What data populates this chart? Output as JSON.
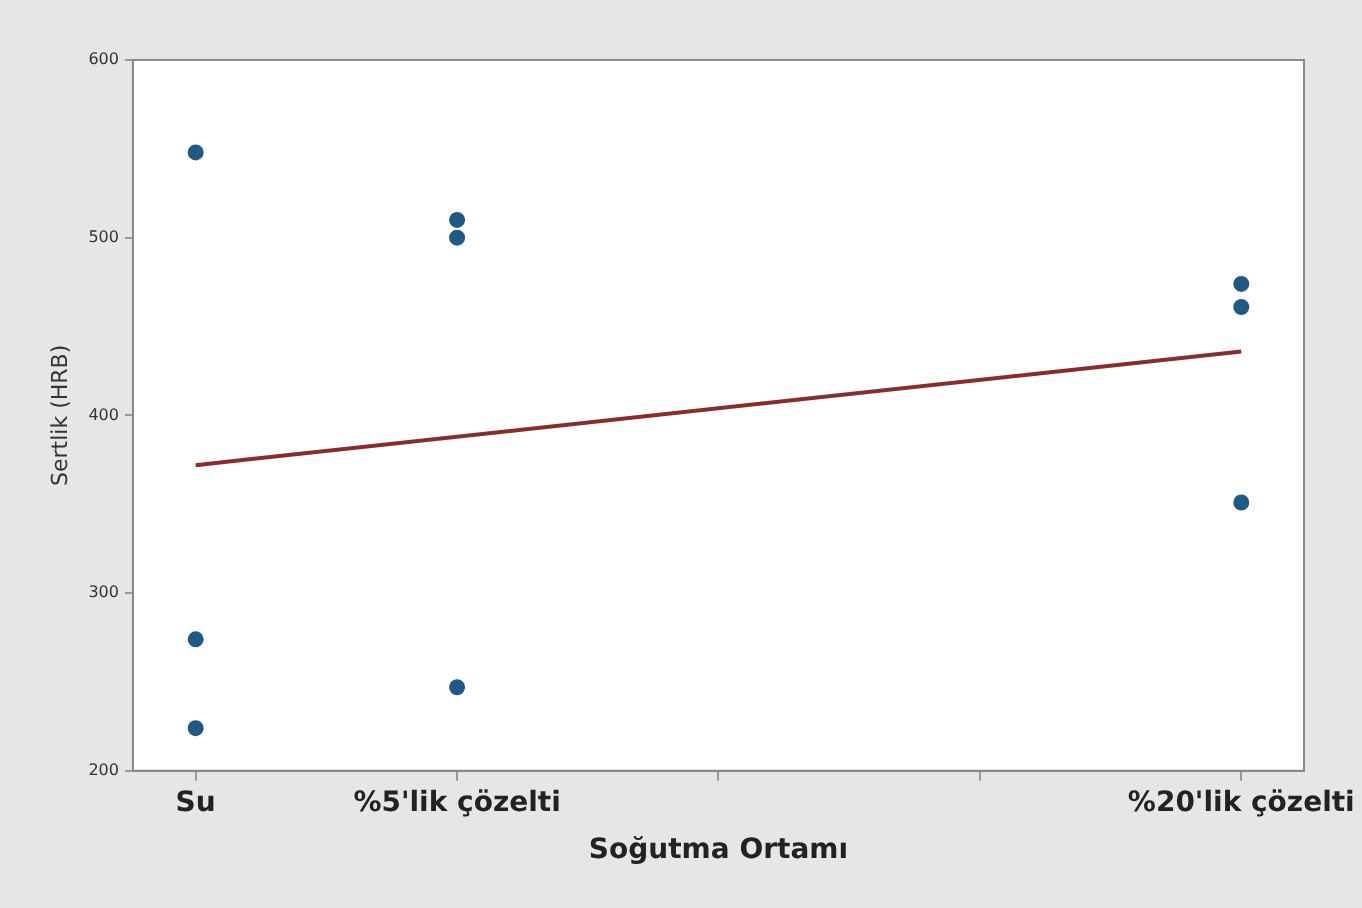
{
  "chart_data": {
    "type": "scatter",
    "xlabel": "Soğutma Ortamı",
    "ylabel": "Sertlik (HRB)",
    "series": [
      {
        "color": "#1f5a85",
        "marker": "circle",
        "x": [
          0,
          0,
          0,
          5,
          5,
          5,
          20,
          20,
          20
        ],
        "values": [
          548,
          274,
          224,
          510,
          500,
          247,
          474,
          461,
          351
        ]
      },
      {
        "type": "line",
        "color": "#8b2c2c",
        "x": [
          0,
          20
        ],
        "values": [
          372,
          436
        ]
      }
    ],
    "xlim": [
      -1.2,
      21.2
    ],
    "xticks": [
      {
        "value": 0,
        "label": "Su"
      },
      {
        "value": 5,
        "label": "%5'lik çözelti"
      },
      {
        "value": 10,
        "label": null
      },
      {
        "value": 15,
        "label": null
      },
      {
        "value": 20,
        "label": "%20'lik çözelti"
      }
    ],
    "ylim": [
      200,
      600
    ],
    "yticks": [
      200,
      300,
      400,
      500,
      600
    ],
    "grid": false,
    "legend": false,
    "line_style": "solid"
  }
}
